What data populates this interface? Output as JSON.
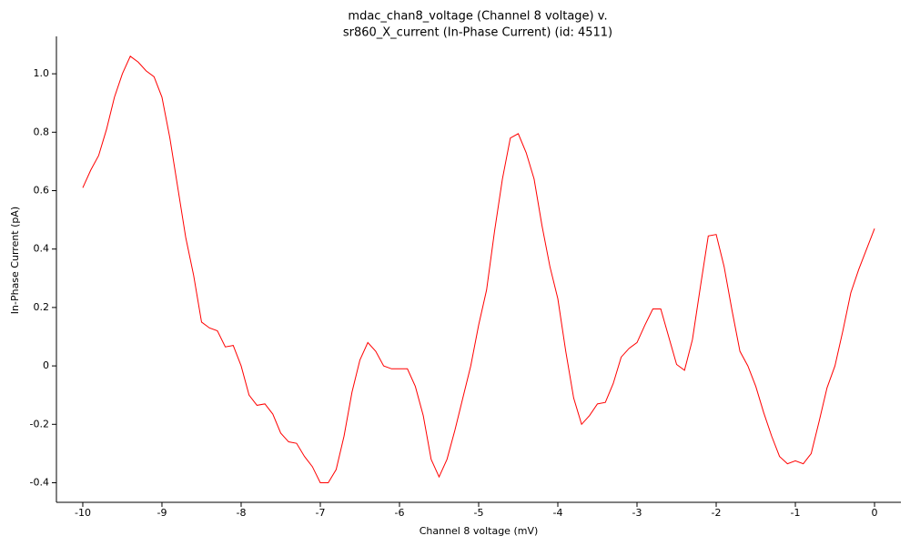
{
  "chart_data": {
    "type": "line",
    "title": [
      "mdac_chan8_voltage (Channel 8 voltage) v.",
      "sr860_X_current (In-Phase Current) (id: 4511)"
    ],
    "x_label": "Channel 8 voltage (mV)",
    "y_label": "In-Phase Current (pA)",
    "color": "#ff0000",
    "xlim": [
      -10.333,
      0.333
    ],
    "ylim": [
      -0.467,
      1.128
    ],
    "xticks": [
      -10,
      -9,
      -8,
      -7,
      -6,
      -5,
      -4,
      -3,
      -2,
      -1,
      0
    ],
    "yticks": [
      -0.4,
      -0.2,
      0,
      0.2,
      0.4,
      0.6,
      0.8,
      {
        "value": 1,
        "label": "1.0"
      }
    ],
    "x": [
      -10,
      -9.9,
      -9.8,
      -9.7,
      -9.6,
      -9.5,
      -9.4,
      -9.3,
      -9.2,
      -9.1,
      -9,
      -8.9,
      -8.8,
      -8.7,
      -8.6,
      -8.5,
      -8.4,
      -8.3,
      -8.2,
      -8.1,
      -8,
      -7.9,
      -7.8,
      -7.7,
      -7.6,
      -7.5,
      -7.4,
      -7.3,
      -7.2,
      -7.1,
      -7,
      -6.9,
      -6.8,
      -6.7,
      -6.6,
      -6.5,
      -6.4,
      -6.3,
      -6.2,
      -6.1,
      -6,
      -5.9,
      -5.8,
      -5.7,
      -5.6,
      -5.5,
      -5.4,
      -5.3,
      -5.2,
      -5.1,
      -5,
      -4.9,
      -4.8,
      -4.7,
      -4.6,
      -4.5,
      -4.4,
      -4.3,
      -4.2,
      -4.1,
      -4,
      -3.9,
      -3.8,
      -3.7,
      -3.6,
      -3.5,
      -3.4,
      -3.3,
      -3.2,
      -3.1,
      -3,
      -2.9,
      -2.8,
      -2.7,
      -2.6,
      -2.5,
      -2.4,
      -2.3,
      -2.2,
      -2.1,
      -2,
      -1.9,
      -1.8,
      -1.7,
      -1.6,
      -1.5,
      -1.4,
      -1.3,
      -1.2,
      -1.1,
      -1,
      -0.9,
      -0.8,
      -0.7,
      -0.6,
      -0.5,
      -0.4,
      -0.3,
      -0.2,
      -0.1,
      0
    ],
    "values": [
      0.61,
      0.67,
      0.72,
      0.81,
      0.92,
      1.0,
      1.06,
      1.04,
      1.01,
      0.99,
      0.92,
      0.78,
      0.61,
      0.44,
      0.31,
      0.15,
      0.13,
      0.12,
      0.065,
      0.07,
      0.0,
      -0.1,
      -0.135,
      -0.13,
      -0.165,
      -0.23,
      -0.26,
      -0.265,
      -0.31,
      -0.345,
      -0.4,
      -0.4,
      -0.355,
      -0.24,
      -0.09,
      0.02,
      0.08,
      0.05,
      0.0,
      -0.01,
      -0.01,
      -0.01,
      -0.07,
      -0.17,
      -0.32,
      -0.38,
      -0.32,
      -0.22,
      -0.11,
      0.0,
      0.14,
      0.26,
      0.46,
      0.64,
      0.78,
      0.795,
      0.73,
      0.64,
      0.48,
      0.34,
      0.23,
      0.05,
      -0.11,
      -0.2,
      -0.17,
      -0.13,
      -0.125,
      -0.06,
      0.03,
      0.06,
      0.08,
      0.14,
      0.195,
      0.195,
      0.1,
      0.005,
      -0.015,
      0.09,
      0.27,
      0.445,
      0.45,
      0.34,
      0.19,
      0.05,
      0.0,
      -0.07,
      -0.16,
      -0.24,
      -0.31,
      -0.335,
      -0.325,
      -0.335,
      -0.3,
      -0.19,
      -0.075,
      0.0,
      0.12,
      0.25,
      0.33,
      0.4,
      0.47
    ]
  }
}
